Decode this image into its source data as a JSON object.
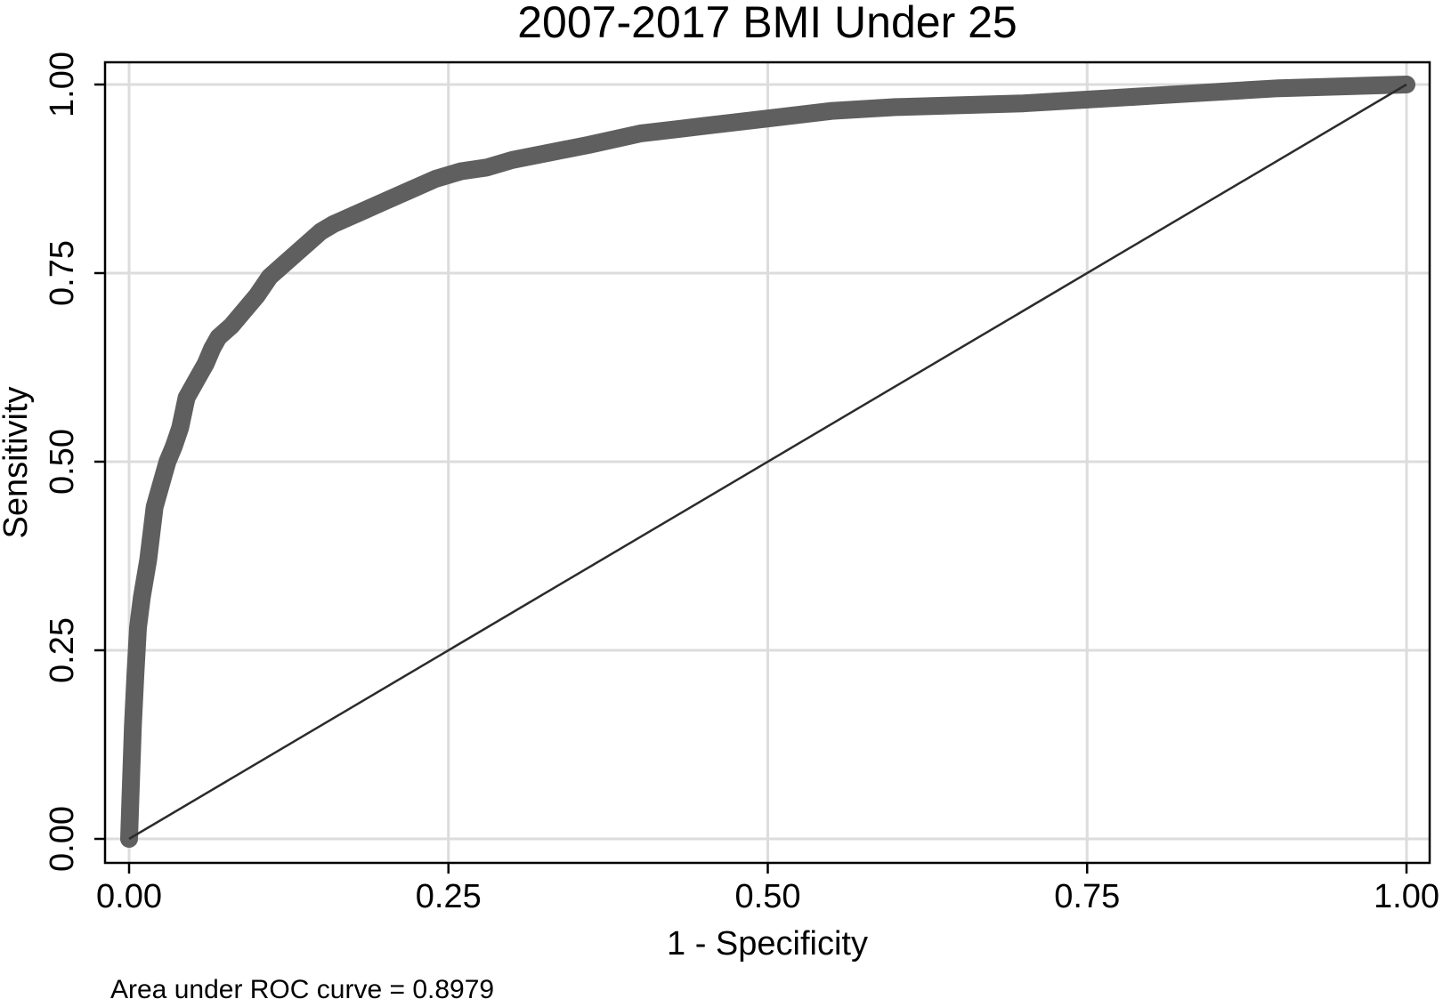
{
  "chart_data": {
    "type": "line",
    "title": "2007-2017 BMI Under 25",
    "xlabel": "1 - Specificity",
    "ylabel": "Sensitivity",
    "xlim": [
      0,
      1
    ],
    "ylim": [
      0,
      1
    ],
    "xticks": [
      0,
      0.25,
      0.5,
      0.75,
      1
    ],
    "yticks": [
      0,
      0.25,
      0.5,
      0.75,
      1
    ],
    "xtick_labels": [
      "0.00",
      "0.25",
      "0.50",
      "0.75",
      "1.00"
    ],
    "ytick_labels": [
      "0.00",
      "0.25",
      "0.50",
      "0.75",
      "1.00"
    ],
    "grid": true,
    "legend": "none",
    "note": "Area under ROC curve = 0.8979",
    "colors": {
      "roc_curve": "#5f5f5f",
      "reference_line": "#2b2b2b",
      "grid": "#dcdcdc",
      "frame": "#000000"
    },
    "series": [
      {
        "role": "roc-curve",
        "x": [
          0,
          0.001,
          0.003,
          0.005,
          0.007,
          0.01,
          0.015,
          0.02,
          0.025,
          0.03,
          0.035,
          0.04,
          0.045,
          0.05,
          0.055,
          0.06,
          0.065,
          0.07,
          0.08,
          0.09,
          0.1,
          0.11,
          0.12,
          0.13,
          0.14,
          0.15,
          0.16,
          0.18,
          0.2,
          0.22,
          0.24,
          0.26,
          0.28,
          0.3,
          0.33,
          0.36,
          0.4,
          0.45,
          0.5,
          0.55,
          0.6,
          0.7,
          0.8,
          0.9,
          1.0
        ],
        "y": [
          0,
          0.05,
          0.15,
          0.22,
          0.28,
          0.32,
          0.37,
          0.44,
          0.47,
          0.5,
          0.52,
          0.545,
          0.585,
          0.6,
          0.615,
          0.63,
          0.65,
          0.665,
          0.68,
          0.7,
          0.72,
          0.745,
          0.76,
          0.775,
          0.79,
          0.805,
          0.815,
          0.83,
          0.845,
          0.86,
          0.875,
          0.885,
          0.89,
          0.9,
          0.91,
          0.92,
          0.935,
          0.945,
          0.955,
          0.965,
          0.97,
          0.975,
          0.985,
          0.995,
          1.0
        ]
      },
      {
        "role": "reference-line",
        "x": [
          0,
          1
        ],
        "y": [
          0,
          1
        ]
      }
    ]
  }
}
